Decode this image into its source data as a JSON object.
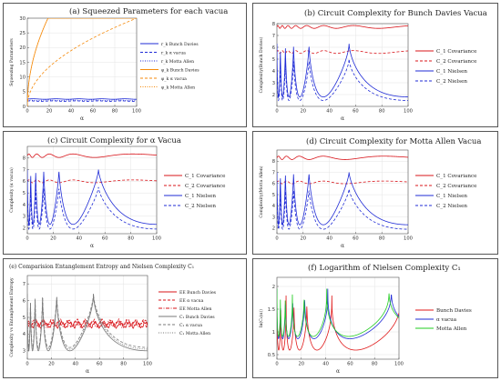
{
  "chart_data": [
    {
      "id": "a",
      "type": "line",
      "title": "(a) Squeezed Parameters for each vacua",
      "xlabel": "α",
      "ylabel": "Squeezing Parameters",
      "xlim": [
        0,
        100
      ],
      "ylim": [
        0,
        30
      ],
      "xticks": [
        0,
        20,
        40,
        60,
        80,
        100
      ],
      "yticks": [
        0,
        5,
        10,
        15,
        20,
        25,
        30
      ],
      "grid": true,
      "legend_position": "right",
      "series": [
        {
          "name": "r_k Bunch Davies",
          "color": "#1f2bd6",
          "dash": "solid",
          "model": "flat",
          "params": [
            2.5,
            0,
            0
          ]
        },
        {
          "name": "r_k α vacua",
          "color": "#1f2bd6",
          "dash": "dashed",
          "model": "flat",
          "params": [
            1.8,
            0,
            0
          ]
        },
        {
          "name": "r_k Motta Allen",
          "color": "#1f2bd6",
          "dash": "dotted",
          "model": "flat",
          "params": [
            2.1,
            0,
            0
          ]
        },
        {
          "name": "φ_k Bunch Davies",
          "color": "#f58a0b",
          "dash": "solid",
          "model": "sqrt",
          "params": [
            6.9,
            0,
            0
          ]
        },
        {
          "name": "φ_k α vacua",
          "color": "#f58a0b",
          "dash": "dashed",
          "model": "sqrt",
          "params": [
            3.0,
            0,
            0
          ]
        },
        {
          "name": "φ_k Motta Allen",
          "color": "#f58a0b",
          "dash": "dotted",
          "model": "sqrt",
          "params": [
            6.9,
            0,
            0
          ]
        }
      ]
    },
    {
      "id": "b",
      "type": "line",
      "title": "(b) Circuit Complexity for Bunch Davies Vacua",
      "xlabel": "α",
      "ylabel": "Complexity(Bunch Davies)",
      "xlim": [
        0,
        100
      ],
      "ylim": [
        1,
        8
      ],
      "xticks": [
        0,
        20,
        40,
        60,
        80,
        100
      ],
      "yticks": [
        2,
        3,
        4,
        5,
        6,
        7,
        8
      ],
      "grid": true,
      "legend_position": "right",
      "series": [
        {
          "name": "C_1 Covariance",
          "color": "#d8141a",
          "dash": "solid",
          "model": "osc",
          "params": [
            7.72,
            0.12,
            2.8
          ]
        },
        {
          "name": "C_2 Covariance",
          "color": "#d8141a",
          "dash": "dashed",
          "model": "osc",
          "params": [
            5.6,
            0.12,
            2.8
          ]
        },
        {
          "name": "C_1 Nielsen",
          "color": "#1f2bd6",
          "dash": "solid",
          "model": "spike",
          "params": [
            1.8,
            4.5,
            0.05
          ]
        },
        {
          "name": "C_2 Nielsen",
          "color": "#1f2bd6",
          "dash": "dashed",
          "model": "spike",
          "params": [
            1.5,
            3.5,
            0.05
          ]
        }
      ]
    },
    {
      "id": "c",
      "type": "line",
      "title": "(c) Circuit Complexity for α Vacua",
      "xlabel": "α",
      "ylabel": "Complexity (α vacua)",
      "xlim": [
        0,
        100
      ],
      "ylim": [
        1.5,
        9
      ],
      "xticks": [
        0,
        20,
        40,
        60,
        80,
        100
      ],
      "yticks": [
        2,
        3,
        4,
        5,
        6,
        7,
        8
      ],
      "grid": true,
      "legend_position": "right",
      "series": [
        {
          "name": "C_1 Covariance",
          "color": "#d8141a",
          "dash": "solid",
          "model": "osc",
          "params": [
            8.2,
            0.15,
            4.5
          ]
        },
        {
          "name": "C_2 Covariance",
          "color": "#d8141a",
          "dash": "dashed",
          "model": "osc",
          "params": [
            6.0,
            0.12,
            4.5
          ]
        },
        {
          "name": "C_1 Nielsen",
          "color": "#1f2bd6",
          "dash": "solid",
          "model": "spike",
          "params": [
            2.3,
            4.7,
            0.04
          ]
        },
        {
          "name": "C_2 Nielsen",
          "color": "#1f2bd6",
          "dash": "dashed",
          "model": "spike",
          "params": [
            1.9,
            3.6,
            0.04
          ]
        }
      ]
    },
    {
      "id": "d",
      "type": "line",
      "title": "(d) Circuit Complexity for Motta Allen Vacua",
      "xlabel": "α",
      "ylabel": "Complexity(Motta Allen)",
      "xlim": [
        0,
        100
      ],
      "ylim": [
        1.5,
        9
      ],
      "xticks": [
        0,
        20,
        40,
        60,
        80,
        100
      ],
      "yticks": [
        2,
        3,
        4,
        5,
        6,
        7,
        8
      ],
      "grid": true,
      "legend_position": "right",
      "series": [
        {
          "name": "C_1 Covariance",
          "color": "#d8141a",
          "dash": "solid",
          "model": "osc",
          "params": [
            8.3,
            0.15,
            4.5
          ]
        },
        {
          "name": "C_2 Covariance",
          "color": "#d8141a",
          "dash": "dashed",
          "model": "osc",
          "params": [
            6.1,
            0.12,
            4.5
          ]
        },
        {
          "name": "C_1 Nielsen",
          "color": "#1f2bd6",
          "dash": "solid",
          "model": "spike",
          "params": [
            2.3,
            4.7,
            0.04
          ]
        },
        {
          "name": "C_2 Nielsen",
          "color": "#1f2bd6",
          "dash": "dashed",
          "model": "spike",
          "params": [
            1.9,
            3.6,
            0.04
          ]
        }
      ]
    },
    {
      "id": "e",
      "type": "line",
      "title": "(e) Comparision Entanglement Entropy and Nielsen Complexity C₁",
      "xlabel": "α",
      "ylabel": "Complexity vs Entanglement Entropy",
      "xlim": [
        0,
        100
      ],
      "ylim": [
        2.5,
        7.5
      ],
      "xticks": [
        0,
        20,
        40,
        60,
        80,
        100
      ],
      "yticks": [
        3,
        4,
        5,
        6,
        7
      ],
      "grid": true,
      "legend_position": "right",
      "series": [
        {
          "name": "EE Bunch Davies",
          "color": "#d8141a",
          "dash": "solid",
          "model": "ee",
          "params": [
            4.55,
            0.15,
            1
          ]
        },
        {
          "name": "EE α vacua",
          "color": "#d8141a",
          "dash": "dashed",
          "model": "ee",
          "params": [
            4.7,
            0.15,
            2
          ]
        },
        {
          "name": "EE Motta Allen",
          "color": "#d8141a",
          "dash": "dashdot",
          "model": "ee",
          "params": [
            4.6,
            0.15,
            3
          ]
        },
        {
          "name": "C₁ Bunch Davies",
          "color": "#7a7a7a",
          "dash": "solid",
          "model": "spike",
          "params": [
            3.0,
            3.4,
            0.06
          ]
        },
        {
          "name": "C₁ α vacua",
          "color": "#7a7a7a",
          "dash": "dashed",
          "model": "spike",
          "params": [
            3.2,
            3.2,
            0.05
          ]
        },
        {
          "name": "C₁ Motta Allen",
          "color": "#7a7a7a",
          "dash": "dotted",
          "model": "spike",
          "params": [
            3.1,
            3.3,
            0.055
          ]
        }
      ]
    },
    {
      "id": "f",
      "type": "line",
      "title": "(f) Logarithm of Nielsen Complexity C₁",
      "xlabel": "α",
      "ylabel": "ln(C₁(α))",
      "xlim": [
        0,
        100
      ],
      "ylim": [
        0.4,
        2.2
      ],
      "xticks": [
        0,
        20,
        40,
        60,
        80,
        100
      ],
      "yticks": [
        0.5,
        1.0,
        1.5,
        2.0
      ],
      "grid": true,
      "legend_position": "right",
      "series": [
        {
          "name": "Bunch Davies",
          "color": "#e01818",
          "dash": "solid",
          "model": "logspike",
          "params": [
            0.6,
            1.2,
            0.07
          ]
        },
        {
          "name": "α vacua",
          "color": "#1f2bd6",
          "dash": "solid",
          "model": "logspike",
          "params": [
            0.85,
            1.1,
            0.05
          ]
        },
        {
          "name": "Motta Allen",
          "color": "#22cc22",
          "dash": "solid",
          "model": "logspike",
          "params": [
            0.9,
            1.05,
            0.045
          ]
        }
      ]
    }
  ]
}
